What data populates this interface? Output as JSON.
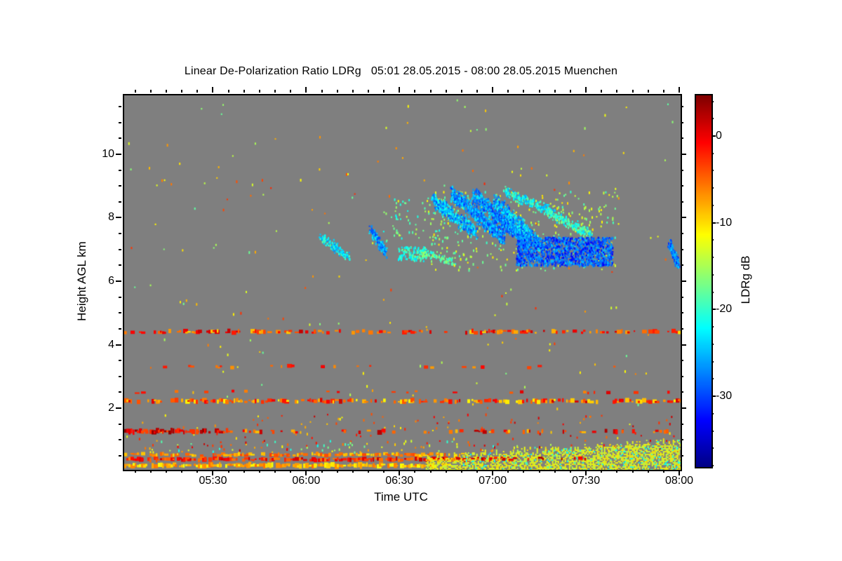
{
  "page": {
    "background": "#ffffff"
  },
  "chart_data": {
    "type": "heatmap",
    "title": "Linear De-Polarization Ratio LDRg   05:01 28.05.2015 - 08:00 28.05.2015 Muenchen",
    "xlabel": "Time UTC",
    "ylabel": "Height AGL km",
    "x_start": "05:01",
    "x_end": "08:00",
    "x_ticks": [
      "05:30",
      "06:00",
      "06:30",
      "07:00",
      "07:30",
      "08:00"
    ],
    "x_minor_step_minutes": 5,
    "y_ticks": [
      2,
      4,
      6,
      8,
      10
    ],
    "y_minor_step_km": 0.5,
    "ylim_km": [
      0.1,
      11.9
    ],
    "no_data_color": "#7f7f7f",
    "grid": false,
    "colorbar": {
      "label": "LDRg dB",
      "ticks": [
        0,
        -10,
        -20,
        -30
      ],
      "minor_step_db": 2,
      "vmax_db": 4.85,
      "vmin_db": -38,
      "colormap": "jet"
    },
    "features": [
      {
        "kind": "blob",
        "t0": "05:01",
        "t1": "08:00",
        "h0": 2.0,
        "h1": 11.8,
        "density": 0.0015,
        "db": [
          -2,
          -18
        ]
      },
      {
        "kind": "blob",
        "t0": "05:01",
        "t1": "08:00",
        "h0": 1.1,
        "h1": 1.9,
        "density": 0.01,
        "db": [
          2,
          -12
        ]
      },
      {
        "kind": "band",
        "t0": "05:01",
        "t1": "08:00",
        "h": 4.45,
        "th": 0.12,
        "density": 0.4,
        "db": [
          2,
          -10
        ]
      },
      {
        "kind": "band",
        "t0": "05:06",
        "t1": "08:00",
        "h": 3.35,
        "th": 0.1,
        "density": 0.1,
        "db": [
          0,
          -8
        ]
      },
      {
        "kind": "band",
        "t0": "05:01",
        "t1": "08:00",
        "h": 2.55,
        "th": 0.08,
        "density": 0.07,
        "db": [
          1,
          -6
        ]
      },
      {
        "kind": "band",
        "t0": "05:01",
        "t1": "08:00",
        "h": 2.27,
        "th": 0.13,
        "density": 0.6,
        "db": [
          2,
          -11
        ]
      },
      {
        "kind": "band",
        "t0": "05:01",
        "t1": "05:33",
        "h": 1.31,
        "th": 0.15,
        "density": 0.85,
        "db": [
          4.5,
          -4
        ]
      },
      {
        "kind": "band",
        "t0": "05:33",
        "t1": "08:00",
        "h": 1.31,
        "th": 0.13,
        "density": 0.26,
        "db": [
          3,
          -9
        ]
      },
      {
        "kind": "blob",
        "t0": "05:01",
        "t1": "08:00",
        "h0": 0.68,
        "h1": 1.05,
        "density": 0.03,
        "db": [
          2,
          -22
        ]
      },
      {
        "kind": "band",
        "t0": "05:01",
        "t1": "06:50",
        "h": 0.58,
        "th": 0.1,
        "density": 0.7,
        "db": [
          -3,
          -10
        ]
      },
      {
        "kind": "band",
        "t0": "05:01",
        "t1": "07:05",
        "h": 0.43,
        "th": 0.12,
        "density": 0.8,
        "db": [
          2,
          -6
        ]
      },
      {
        "kind": "band",
        "t0": "05:01",
        "t1": "06:45",
        "h": 0.24,
        "th": 0.15,
        "density": 0.85,
        "db": [
          -5,
          -12
        ]
      },
      {
        "kind": "mound",
        "t0": "06:38",
        "t1": "08:00",
        "hb": 0.12,
        "ht0": 0.5,
        "ht1": 1.0,
        "density": 0.6,
        "db": [
          -9.5,
          -14.5
        ]
      },
      {
        "kind": "mound",
        "t0": "06:50",
        "t1": "08:00",
        "hb": 0.12,
        "ht0": 0.5,
        "ht1": 1.0,
        "density": 0.07,
        "db": [
          -19,
          -23
        ]
      },
      {
        "kind": "band",
        "t0": "06:45",
        "t1": "07:30",
        "h": 0.45,
        "th": 0.1,
        "density": 0.22,
        "db": [
          3,
          -2
        ]
      },
      {
        "kind": "streak",
        "t0": "06:04",
        "h0": 7.45,
        "t1": "06:13",
        "h1": 6.85,
        "th": 0.3,
        "density": 0.5,
        "db": [
          -18,
          -27
        ]
      },
      {
        "kind": "streak",
        "t0": "06:20",
        "h0": 7.7,
        "t1": "06:25",
        "h1": 6.95,
        "th": 0.28,
        "density": 0.6,
        "db": [
          -22,
          -30
        ]
      },
      {
        "kind": "blob",
        "t0": "06:29",
        "t1": "06:38",
        "h0": 6.7,
        "h1": 7.15,
        "density": 0.45,
        "db": [
          -17,
          -24
        ]
      },
      {
        "kind": "blob",
        "t0": "06:24",
        "t1": "06:45",
        "h0": 7.3,
        "h1": 8.7,
        "density": 0.035,
        "db": [
          -14,
          -22
        ]
      },
      {
        "kind": "streak",
        "t0": "06:36",
        "h0": 7.0,
        "t1": "06:47",
        "h1": 6.7,
        "th": 0.25,
        "density": 0.4,
        "db": [
          -15,
          -22
        ]
      },
      {
        "kind": "blob",
        "t0": "06:38",
        "t1": "07:40",
        "h0": 6.4,
        "h1": 8.9,
        "density": 0.03,
        "db": [
          -10,
          -20
        ]
      },
      {
        "kind": "streak",
        "t0": "06:40",
        "h0": 8.65,
        "t1": "06:54",
        "h1": 7.6,
        "th": 0.45,
        "density": 0.55,
        "db": [
          -20,
          -30
        ]
      },
      {
        "kind": "streak",
        "t0": "06:46",
        "h0": 8.85,
        "t1": "07:03",
        "h1": 7.45,
        "th": 0.5,
        "density": 0.6,
        "db": [
          -22,
          -31
        ]
      },
      {
        "kind": "streak",
        "t0": "06:53",
        "h0": 8.8,
        "t1": "07:11",
        "h1": 7.25,
        "th": 0.5,
        "density": 0.6,
        "db": [
          -22,
          -31
        ]
      },
      {
        "kind": "streak",
        "t0": "07:00",
        "h0": 8.6,
        "t1": "07:15",
        "h1": 7.15,
        "th": 0.45,
        "density": 0.55,
        "db": [
          -20,
          -30
        ]
      },
      {
        "kind": "streak",
        "t0": "07:03",
        "h0": 8.9,
        "t1": "07:19",
        "h1": 8.25,
        "th": 0.3,
        "density": 0.5,
        "db": [
          -18,
          -26
        ]
      },
      {
        "kind": "streak",
        "t0": "07:17",
        "h0": 8.25,
        "t1": "07:31",
        "h1": 7.55,
        "th": 0.3,
        "density": 0.5,
        "db": [
          -16,
          -24
        ]
      },
      {
        "kind": "blob",
        "t0": "07:07",
        "t1": "07:38",
        "h0": 6.55,
        "h1": 7.45,
        "density": 0.7,
        "db": [
          -24,
          -33
        ]
      },
      {
        "kind": "streak",
        "t0": "07:56",
        "h0": 7.3,
        "t1": "07:59",
        "h1": 6.6,
        "th": 0.3,
        "density": 0.55,
        "db": [
          -24,
          -31
        ]
      }
    ]
  }
}
